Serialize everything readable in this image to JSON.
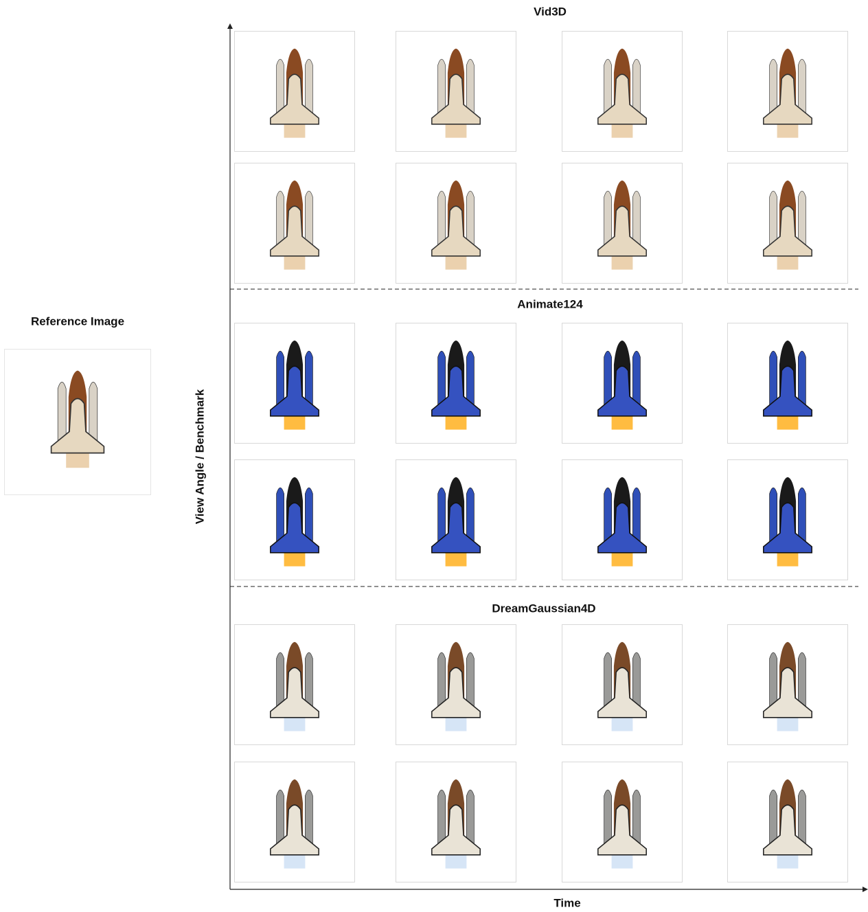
{
  "reference": {
    "title": "Reference Image"
  },
  "axes": {
    "y_label": "View Angle / Benchmark",
    "x_label": "Time"
  },
  "sections": [
    {
      "title": "Vid3D"
    },
    {
      "title": "Animate124"
    },
    {
      "title": "DreamGaussian4D"
    }
  ]
}
